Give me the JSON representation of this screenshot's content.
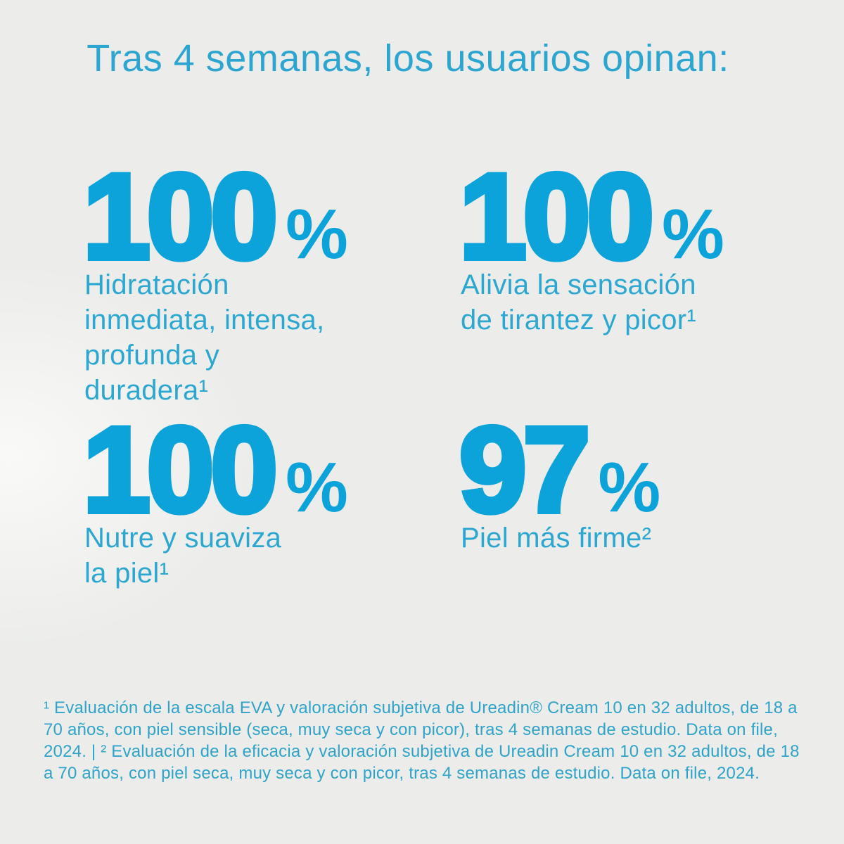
{
  "header": {
    "title": "Tras 4 semanas, los usuarios opinan:"
  },
  "stats": [
    {
      "value": "100",
      "unit": "%",
      "label": "Hidratación\ninmediata, intensa,\nprofunda y\nduradera¹"
    },
    {
      "value": "100",
      "unit": "%",
      "label": "Alivia la sensación\nde tirantez y picor¹"
    },
    {
      "value": "100",
      "unit": "%",
      "label": "Nutre y suaviza\nla piel¹"
    },
    {
      "value": "97",
      "unit": "%",
      "label": "Piel más firme²"
    }
  ],
  "footnote": {
    "text": "¹ Evaluación de la escala EVA y valoración subjetiva de Ureadin® Cream 10 en 32 adultos, de 18 a 70 años, con piel sensible (seca, muy seca y con picor), tras 4 semanas de estudio. Data on file, 2024. | ² Evaluación de la eficacia y valoración subjetiva de Ureadin Cream 10 en 32 adultos, de 18 a 70 años, con piel seca, muy seca y con picor, tras 4 semanas de estudio. Data on file, 2024."
  },
  "colors": {
    "background": "#ECEDEB",
    "title": "#2CA6D0",
    "stat_value": "#0CA2DA",
    "stat_label": "#2BA7D2",
    "footnote": "#2FA3C9"
  }
}
